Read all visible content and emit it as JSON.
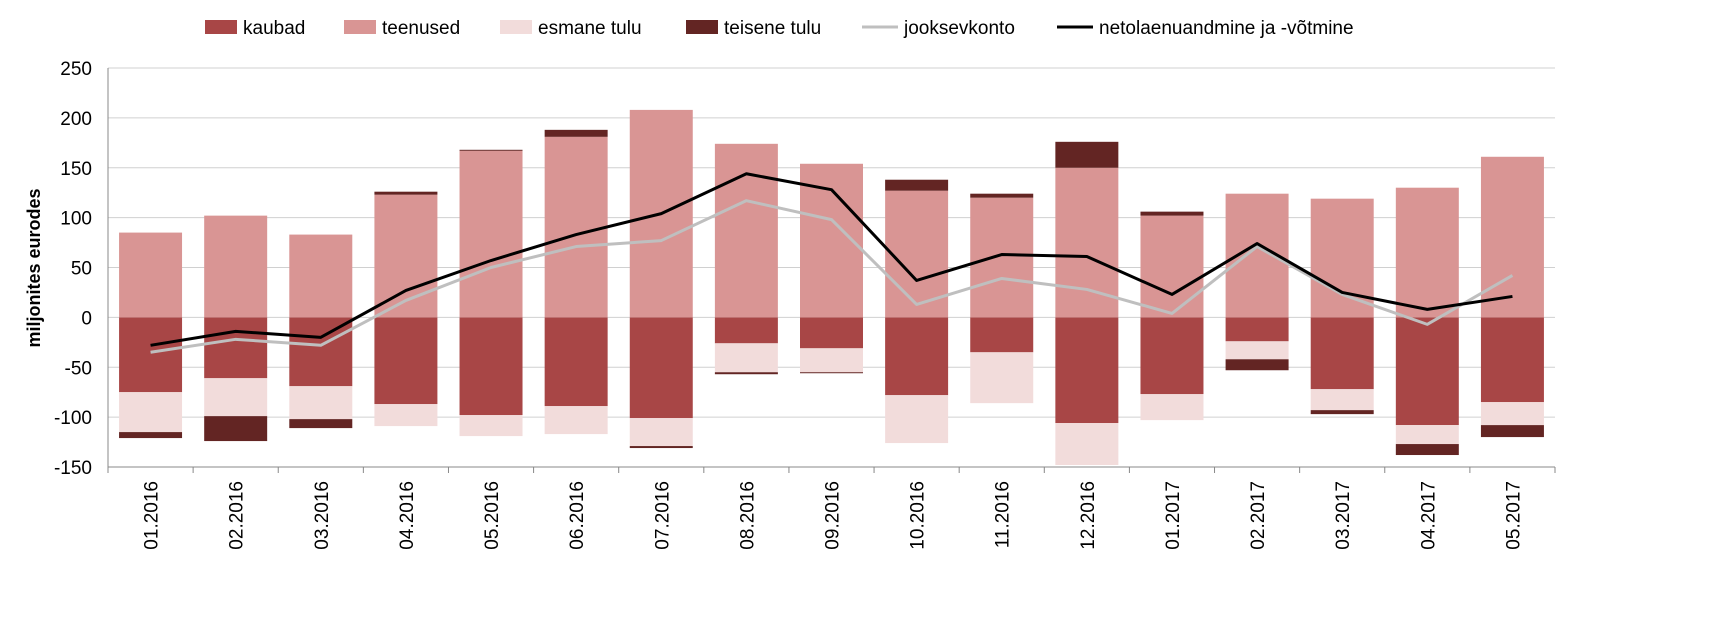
{
  "chart_data": {
    "type": "bar",
    "stacked": true,
    "categories": [
      "01.2016",
      "02.2016",
      "03.2016",
      "04.2016",
      "05.2016",
      "06.2016",
      "07.2016",
      "08.2016",
      "09.2016",
      "10.2016",
      "11.2016",
      "12.2016",
      "01.2017",
      "02.2017",
      "03.2017",
      "04.2017",
      "05.2017"
    ],
    "ylabel": "miljonites eurodes",
    "ylim": [
      -150,
      250
    ],
    "yticks": [
      -150,
      -100,
      -50,
      0,
      50,
      100,
      150,
      200,
      250
    ],
    "grid": true,
    "legend_position": "top",
    "series": [
      {
        "name": "kaubad",
        "kind": "bar",
        "color": "#a84646",
        "values": [
          -75,
          -61,
          -69,
          -87,
          -98,
          -89,
          -101,
          -26,
          -31,
          -78,
          -35,
          -106,
          -77,
          -24,
          -72,
          -108,
          -85
        ]
      },
      {
        "name": "teenused",
        "kind": "bar",
        "color": "#d99594",
        "values": [
          85,
          102,
          83,
          123,
          167,
          181,
          208,
          174,
          154,
          127,
          120,
          150,
          102,
          124,
          119,
          130,
          161
        ]
      },
      {
        "name": "esmane tulu",
        "kind": "bar",
        "color": "#f2dcdb",
        "values": [
          -40,
          -38,
          -33,
          -22,
          -21,
          -28,
          -28,
          -29,
          -24,
          -48,
          -51,
          -42,
          -26,
          -18,
          -21,
          -19,
          -23
        ]
      },
      {
        "name": "teisene tulu",
        "kind": "bar",
        "color": "#632523",
        "values": [
          -6,
          -25,
          -9,
          3,
          1,
          7,
          -2,
          -2,
          -1,
          11,
          4,
          26,
          4,
          -11,
          -4,
          -11,
          -12
        ]
      },
      {
        "name": "jooksevkonto",
        "kind": "line",
        "color": "#bfbfbf",
        "values": [
          -35,
          -22,
          -28,
          17,
          50,
          71,
          77,
          117,
          98,
          13,
          39,
          28,
          4,
          71,
          23,
          -7,
          42
        ]
      },
      {
        "name": "netolaenuandmine ja -võtmine",
        "kind": "line",
        "color": "#000000",
        "values": [
          -28,
          -14,
          -20,
          27,
          57,
          83,
          104,
          144,
          128,
          37,
          63,
          61,
          23,
          74,
          25,
          8,
          21
        ]
      }
    ]
  }
}
